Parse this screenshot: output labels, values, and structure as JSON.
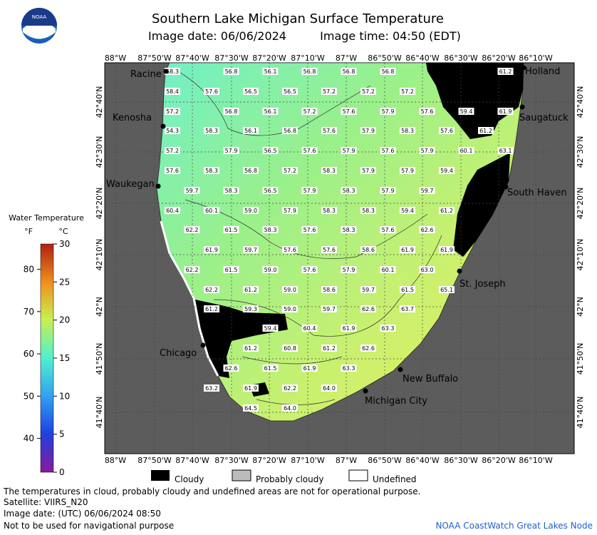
{
  "header": {
    "logo_text": "NOAA",
    "title": "Southern Lake Michigan Surface Temperature",
    "image_date": "Image date: 06/06/2024",
    "image_time": "Image time: 04:50 (EDT)"
  },
  "colorbar": {
    "title": "Water Temperature",
    "f_unit": "°F",
    "c_unit": "°C",
    "f_ticks": [
      40,
      50,
      60,
      70,
      80
    ],
    "c_ticks": [
      0,
      5,
      10,
      15,
      20,
      25,
      30
    ]
  },
  "axes": {
    "x_labels": [
      "88°W",
      "87°50'W",
      "87°40'W",
      "87°30'W",
      "87°20'W",
      "87°10'W",
      "87°W",
      "86°50'W",
      "86°40'W",
      "86°30'W",
      "86°20'W",
      "86°10'W"
    ],
    "y_labels": [
      "42°40'N",
      "42°30'N",
      "42°20'N",
      "42°10'N",
      "42°N",
      "41°50'N",
      "41°40'N"
    ]
  },
  "places": [
    "Racine",
    "Kenosha",
    "Waukegan",
    "Chicago",
    "Holland",
    "Saugatuck",
    "South Haven",
    "St. Joseph",
    "New Buffalo",
    "Michigan City"
  ],
  "temperature_grid": [
    [
      "58.3",
      "56.8",
      "56.1",
      "56.8",
      "56.8",
      "56.8",
      "61.2"
    ],
    [
      "58.4",
      "57.6",
      "56.5",
      "56.5",
      "57.2",
      "57.2",
      "57.2"
    ],
    [
      "57.2",
      "56.8",
      "56.1",
      "57.2",
      "57.6",
      "57.9",
      "57.6",
      "59.4",
      "61.9"
    ],
    [
      "54.3",
      "58.3",
      "56.1",
      "56.8",
      "57.6",
      "57.9",
      "58.3",
      "57.6",
      "61.2"
    ],
    [
      "57.2",
      "57.9",
      "56.5",
      "57.6",
      "57.9",
      "57.6",
      "57.9",
      "60.1",
      "63.1"
    ],
    [
      "57.6",
      "58.3",
      "56.8",
      "57.2",
      "58.3",
      "57.9",
      "57.9",
      "59.4"
    ],
    [
      "59.7",
      "58.3",
      "56.5",
      "57.9",
      "58.3",
      "57.9",
      "59.7"
    ],
    [
      "60.4",
      "60.1",
      "59.0",
      "57.9",
      "58.3",
      "58.3",
      "59.4",
      "61.2"
    ],
    [
      "62.2",
      "61.5",
      "58.3",
      "57.6",
      "58.3",
      "57.6",
      "62.6"
    ],
    [
      "61.9",
      "59.7",
      "57.6",
      "57.6",
      "58.6",
      "61.9",
      "61.9"
    ],
    [
      "62.2",
      "61.5",
      "59.0",
      "57.6",
      "57.9",
      "60.1",
      "63.0"
    ],
    [
      "62.2",
      "61.2",
      "59.0",
      "58.6",
      "59.7",
      "61.5",
      "65.1"
    ],
    [
      "61.2",
      "59.3",
      "59.0",
      "59.7",
      "62.6",
      "63.7"
    ],
    [
      "59.4",
      "60.4",
      "61.9",
      "63.3"
    ],
    [
      "61.2",
      "60.8",
      "61.2",
      "62.6"
    ],
    [
      "62.6",
      "61.5",
      "61.9",
      "63.3"
    ],
    [
      "63.2",
      "61.9",
      "62.2",
      "64.0"
    ],
    [
      "64.5",
      "64.0"
    ]
  ],
  "legend": [
    "Cloudy",
    "Probably cloudy",
    "Undefined"
  ],
  "footer": {
    "lines": [
      "The temperatures in cloud, probably cloudy and undefined areas are not for operational purpose.",
      "Satellite: VIIRS_N20",
      "Image date: (UTC) 06/06/2024  08:50",
      "Not to be used for navigational purpose"
    ],
    "credit": "NOAA CoastWatch Great Lakes Node"
  }
}
